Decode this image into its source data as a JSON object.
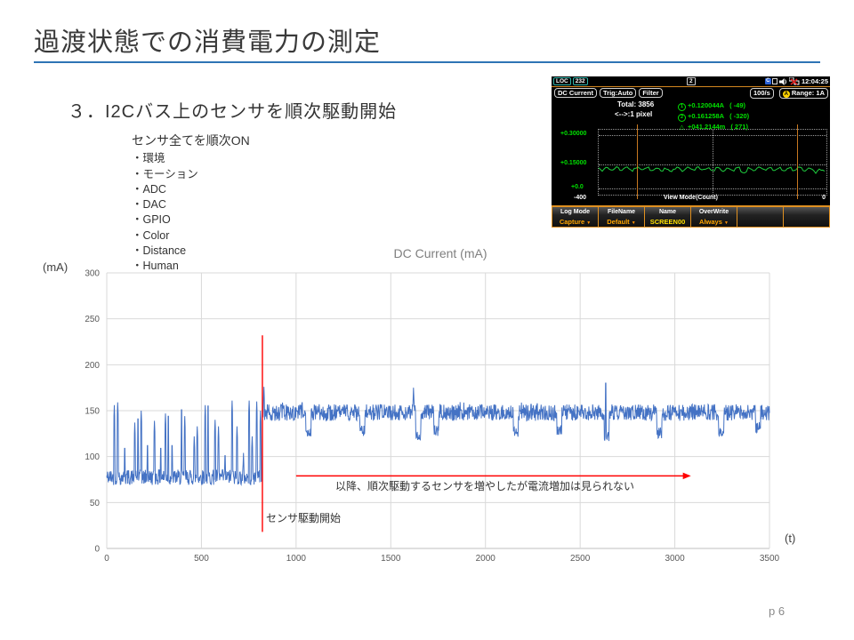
{
  "slide": {
    "title": "過渡状態での消費電力の測定",
    "subtitle": "３．I2Cバス上のセンサを順次駆動開始",
    "page": "p 6",
    "accent_color": "#2e74b5"
  },
  "sensor_list": {
    "header": "センサ全てを順次ON",
    "bullet": "・",
    "items": [
      "環境",
      "モーション",
      "ADC",
      "DAC",
      "GPIO",
      "Color",
      "Distance",
      "Human"
    ]
  },
  "instrument": {
    "status_bar": {
      "left_badges": [
        "LOC",
        "232"
      ],
      "center_badge": "2",
      "drive_letter": "C",
      "time": "12:04:25"
    },
    "mode_bar": {
      "left_pills": [
        "DC Current",
        "Trig:Auto",
        "Filter"
      ],
      "rate": "100/s",
      "range_marker": "A",
      "range_label": "Range:",
      "range_value": "1A"
    },
    "readout": {
      "total": "Total:  3856",
      "pixel": "<-->:1 pixel",
      "markers": [
        {
          "mark": "1",
          "type": "circle",
          "value": "+0.120044A",
          "ref": "(  -49)"
        },
        {
          "mark": "2",
          "type": "circle",
          "value": "+0.161258A",
          "ref": "( -320)"
        },
        {
          "mark": "△",
          "type": "triangle",
          "value": "+041.2144m",
          "ref": "(  271)"
        }
      ]
    },
    "graph": {
      "y_labels": [
        "+0.30000",
        "+0.15000",
        "+0.0"
      ],
      "x_left": "-400",
      "x_title": "View Mode(Count)",
      "x_right": "0",
      "trace_color": "#1fce3f",
      "cursor_color": "#c87820"
    },
    "menu": [
      {
        "title": "Log Mode",
        "value": "Capture",
        "arrow": true,
        "accent": "orange"
      },
      {
        "title": "FileName",
        "value": "Default",
        "arrow": true,
        "accent": "orange"
      },
      {
        "title": "Name",
        "value": "SCREEN00",
        "arrow": false,
        "accent": "yellow"
      },
      {
        "title": "OverWrite",
        "value": "Always",
        "arrow": true,
        "accent": "orange"
      },
      {
        "title": "",
        "value": "",
        "arrow": false,
        "accent": "orange"
      },
      {
        "title": "",
        "value": "",
        "arrow": false,
        "accent": "orange"
      }
    ]
  },
  "chart_data": {
    "type": "line",
    "title": "DC Current (mA)",
    "y_unit_label": "(mA)",
    "x_unit_label": "(t)",
    "xlabel": "",
    "ylabel": "",
    "xlim": [
      0,
      3500
    ],
    "ylim": [
      0,
      300
    ],
    "x_ticks": [
      0,
      500,
      1000,
      1500,
      2000,
      2500,
      3000,
      3500
    ],
    "y_ticks": [
      0,
      50,
      100,
      150,
      200,
      250,
      300
    ],
    "grid": true,
    "legend": false,
    "series_color": "#4472c4",
    "waveform": {
      "transition_x": 822,
      "pre": {
        "base_min": 69,
        "base_max": 86,
        "spikes": [
          [
            40,
            156
          ],
          [
            58,
            159
          ],
          [
            95,
            115
          ],
          [
            148,
            137
          ],
          [
            165,
            147
          ],
          [
            182,
            150
          ],
          [
            215,
            118
          ],
          [
            252,
            139
          ],
          [
            285,
            115
          ],
          [
            310,
            147
          ],
          [
            325,
            150
          ],
          [
            345,
            118
          ],
          [
            395,
            157
          ],
          [
            412,
            144
          ],
          [
            462,
            122
          ],
          [
            478,
            133
          ],
          [
            520,
            156
          ],
          [
            535,
            161
          ],
          [
            572,
            140
          ],
          [
            590,
            133
          ],
          [
            625,
            107
          ],
          [
            662,
            161
          ],
          [
            688,
            133
          ],
          [
            722,
            104
          ],
          [
            752,
            161
          ],
          [
            768,
            122
          ],
          [
            792,
            160
          ],
          [
            812,
            150
          ]
        ]
      },
      "post": {
        "band_min": 139,
        "band_max": 157,
        "dips": [
          [
            1065,
            120
          ],
          [
            1350,
            122
          ],
          [
            1645,
            118
          ],
          [
            1740,
            122
          ],
          [
            2160,
            120
          ],
          [
            2390,
            122
          ],
          [
            2640,
            116
          ],
          [
            2918,
            120
          ],
          [
            3245,
            122
          ],
          [
            3440,
            126
          ]
        ],
        "spikes": [
          [
            830,
            176
          ],
          [
            1620,
            175
          ],
          [
            2635,
            186
          ]
        ]
      }
    },
    "annotations": {
      "vline": {
        "x": 822,
        "y_from": 18,
        "y_to": 232,
        "color": "#ff0000",
        "label": "センサ駆動開始"
      },
      "arrow": {
        "x_from": 1000,
        "x_to": 3085,
        "y": 79,
        "color": "#ff0000",
        "label": "以降、順次駆動するセンサを増やしたが電流増加は見られない"
      }
    }
  }
}
